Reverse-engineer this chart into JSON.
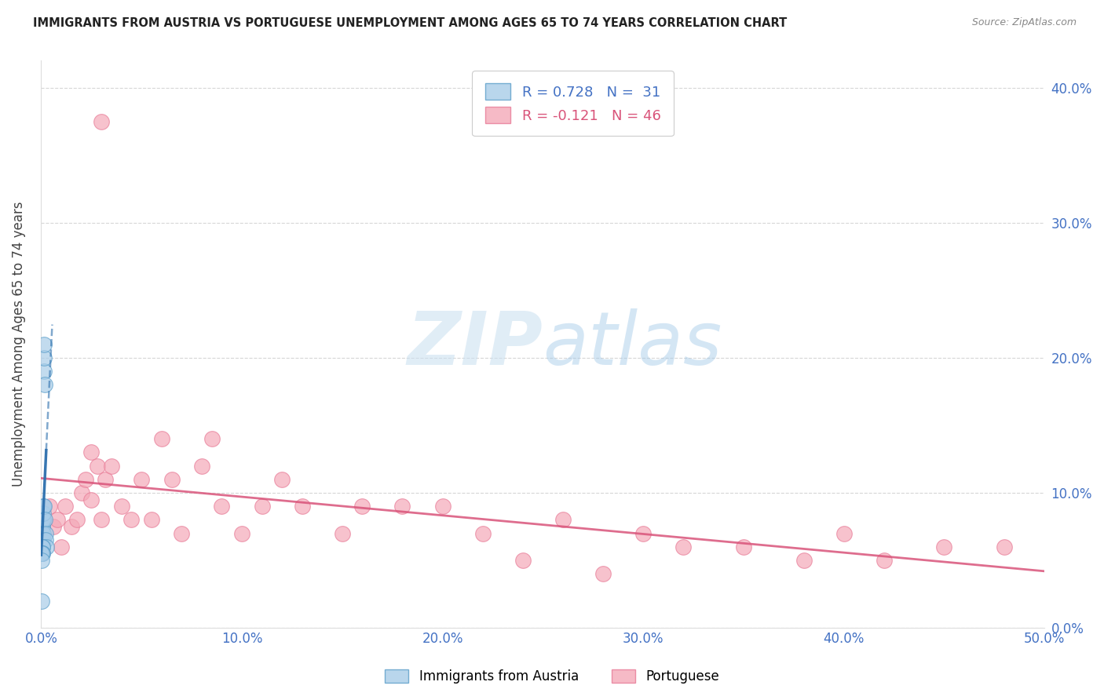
{
  "title": "IMMIGRANTS FROM AUSTRIA VS PORTUGUESE UNEMPLOYMENT AMONG AGES 65 TO 74 YEARS CORRELATION CHART",
  "source": "Source: ZipAtlas.com",
  "ylabel": "Unemployment Among Ages 65 to 74 years",
  "watermark_zip": "ZIP",
  "watermark_atlas": "atlas",
  "xlim": [
    0.0,
    0.5
  ],
  "ylim": [
    0.0,
    0.42
  ],
  "xticks": [
    0.0,
    0.1,
    0.2,
    0.3,
    0.4,
    0.5
  ],
  "yticks": [
    0.0,
    0.1,
    0.2,
    0.3,
    0.4
  ],
  "blue_R": 0.728,
  "blue_N": 31,
  "pink_R": -0.121,
  "pink_N": 46,
  "blue_color": "#a8cce8",
  "pink_color": "#f4a9b8",
  "blue_edge_color": "#5a9ec9",
  "pink_edge_color": "#e87a96",
  "blue_line_color": "#2c6fad",
  "pink_line_color": "#d9547a",
  "tick_label_color": "#4472c4",
  "title_color": "#222222",
  "ylabel_color": "#444444",
  "source_color": "#888888",
  "blue_x": [
    0.0002,
    0.0003,
    0.0004,
    0.0004,
    0.0005,
    0.0005,
    0.0006,
    0.0007,
    0.0008,
    0.0008,
    0.0009,
    0.0009,
    0.001,
    0.001,
    0.0011,
    0.0012,
    0.0013,
    0.0014,
    0.0015,
    0.0016,
    0.0018,
    0.002,
    0.0022,
    0.0025,
    0.0006,
    0.0007,
    0.0008,
    0.0005,
    0.0004,
    0.0003,
    0.0002
  ],
  "blue_y": [
    0.06,
    0.065,
    0.07,
    0.06,
    0.075,
    0.065,
    0.07,
    0.075,
    0.08,
    0.065,
    0.08,
    0.065,
    0.085,
    0.07,
    0.09,
    0.09,
    0.19,
    0.2,
    0.21,
    0.18,
    0.08,
    0.07,
    0.065,
    0.06,
    0.06,
    0.06,
    0.055,
    0.055,
    0.055,
    0.05,
    0.02
  ],
  "pink_x": [
    0.004,
    0.006,
    0.008,
    0.01,
    0.012,
    0.015,
    0.018,
    0.02,
    0.022,
    0.025,
    0.028,
    0.03,
    0.032,
    0.035,
    0.04,
    0.045,
    0.05,
    0.055,
    0.06,
    0.065,
    0.07,
    0.08,
    0.085,
    0.09,
    0.1,
    0.11,
    0.12,
    0.13,
    0.15,
    0.16,
    0.18,
    0.2,
    0.22,
    0.24,
    0.26,
    0.28,
    0.3,
    0.32,
    0.35,
    0.38,
    0.4,
    0.42,
    0.45,
    0.48,
    0.025,
    0.03
  ],
  "pink_y": [
    0.09,
    0.075,
    0.08,
    0.06,
    0.09,
    0.075,
    0.08,
    0.1,
    0.11,
    0.13,
    0.12,
    0.08,
    0.11,
    0.12,
    0.09,
    0.08,
    0.11,
    0.08,
    0.14,
    0.11,
    0.07,
    0.12,
    0.14,
    0.09,
    0.07,
    0.09,
    0.11,
    0.09,
    0.07,
    0.09,
    0.09,
    0.09,
    0.07,
    0.05,
    0.08,
    0.04,
    0.07,
    0.06,
    0.06,
    0.05,
    0.07,
    0.05,
    0.06,
    0.06,
    0.095,
    0.375
  ]
}
